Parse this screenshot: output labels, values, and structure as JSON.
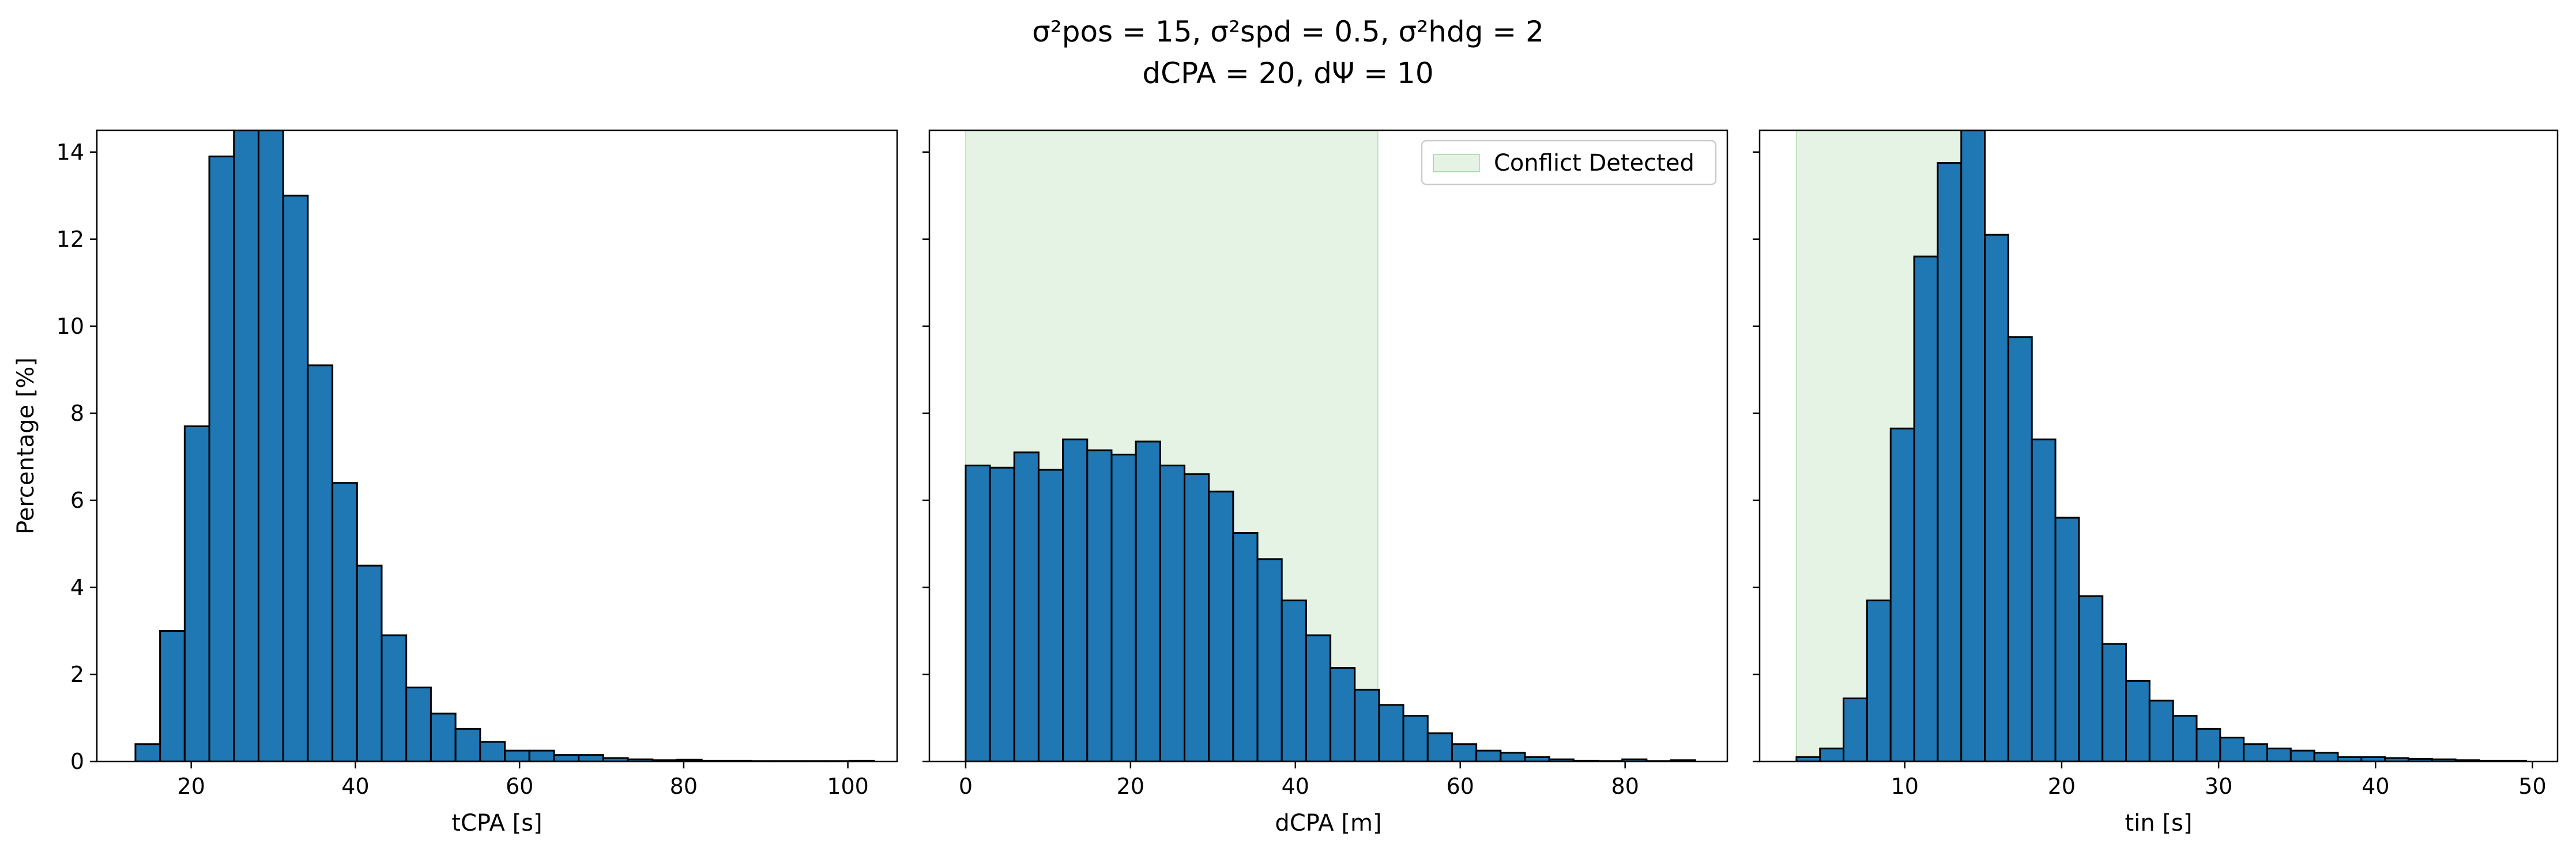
{
  "figure": {
    "title_line1": "σ²pos = 15, σ²spd = 0.5, σ²hdg = 2",
    "title_line2": "dCPA = 20, dΨ = 10"
  },
  "colors": {
    "bar": "#1f77b4",
    "bar_edge": "#000000",
    "shade": "#2ca02c"
  },
  "chart_data": [
    {
      "type": "bar",
      "xlabel": "tCPA [s]",
      "ylabel": "Percentage [%]",
      "xlim": [
        8.5,
        106
      ],
      "ylim": [
        0,
        14.5
      ],
      "xticks": [
        20,
        40,
        60,
        80,
        100
      ],
      "yticks": [
        0,
        2,
        4,
        6,
        8,
        10,
        12,
        14
      ],
      "bin_edges": [
        13.2,
        16.2,
        19.2,
        22.2,
        25.2,
        28.2,
        31.2,
        34.2,
        37.2,
        40.2,
        43.2,
        46.2,
        49.2,
        52.2,
        55.2,
        58.2,
        61.2,
        64.2,
        67.2,
        70.2,
        73.2,
        76.2,
        79.2,
        82.2,
        85.2,
        88.2,
        91.2,
        94.2,
        97.2,
        100.2,
        103.2
      ],
      "values": [
        0.4,
        3.0,
        7.7,
        13.9,
        14.5,
        14.5,
        13.0,
        9.1,
        6.4,
        4.5,
        2.9,
        1.7,
        1.1,
        0.75,
        0.45,
        0.25,
        0.25,
        0.15,
        0.15,
        0.08,
        0.05,
        0.03,
        0.04,
        0.02,
        0.02,
        0.01,
        0.01,
        0.01,
        0.01,
        0.02
      ]
    },
    {
      "type": "bar",
      "xlabel": "dCPA [m]",
      "ylabel": "",
      "xlim": [
        -4.4,
        92.4
      ],
      "ylim": [
        0,
        14.5
      ],
      "xticks": [
        0,
        20,
        40,
        60,
        80
      ],
      "yticks": [
        0,
        2,
        4,
        6,
        8,
        10,
        12,
        14
      ],
      "shade": [
        0,
        50
      ],
      "legend": "Conflict Detected",
      "legend_position": "top-right",
      "bin_edges": [
        0,
        2.95,
        5.9,
        8.85,
        11.8,
        14.75,
        17.7,
        20.65,
        23.6,
        26.55,
        29.5,
        32.45,
        35.4,
        38.35,
        41.3,
        44.25,
        47.2,
        50.15,
        53.1,
        56.05,
        59.0,
        61.95,
        64.9,
        67.85,
        70.8,
        73.75,
        76.7,
        79.65,
        82.6,
        85.55,
        88.5
      ],
      "values": [
        6.8,
        6.75,
        7.1,
        6.7,
        7.4,
        7.15,
        7.05,
        7.35,
        6.8,
        6.6,
        6.2,
        5.25,
        4.65,
        3.7,
        2.9,
        2.15,
        1.65,
        1.3,
        1.05,
        0.65,
        0.4,
        0.25,
        0.2,
        0.1,
        0.05,
        0.02,
        0.01,
        0.05,
        0.01,
        0.03
      ]
    },
    {
      "type": "bar",
      "xlabel": "tin [s]",
      "ylabel": "",
      "xlim": [
        0.75,
        51.6
      ],
      "ylim": [
        0,
        14.5
      ],
      "xticks": [
        10,
        20,
        30,
        40,
        50
      ],
      "yticks": [
        0,
        2,
        4,
        6,
        8,
        10,
        12,
        14
      ],
      "shade": [
        3.1,
        14.8
      ],
      "bin_edges": [
        3.1,
        4.6,
        6.1,
        7.6,
        9.1,
        10.6,
        12.1,
        13.6,
        15.1,
        16.6,
        18.1,
        19.6,
        21.1,
        22.6,
        24.1,
        25.6,
        27.1,
        28.6,
        30.1,
        31.6,
        33.1,
        34.6,
        36.1,
        37.6,
        39.1,
        40.6,
        42.1,
        43.6,
        45.1,
        46.6,
        48.1,
        49.6
      ],
      "values": [
        0.1,
        0.3,
        1.45,
        3.7,
        7.65,
        11.6,
        13.75,
        14.5,
        12.1,
        9.75,
        7.4,
        5.6,
        3.8,
        2.7,
        1.85,
        1.4,
        1.05,
        0.75,
        0.55,
        0.4,
        0.3,
        0.25,
        0.2,
        0.1,
        0.1,
        0.08,
        0.06,
        0.05,
        0.03,
        0.02,
        0.02
      ]
    }
  ]
}
